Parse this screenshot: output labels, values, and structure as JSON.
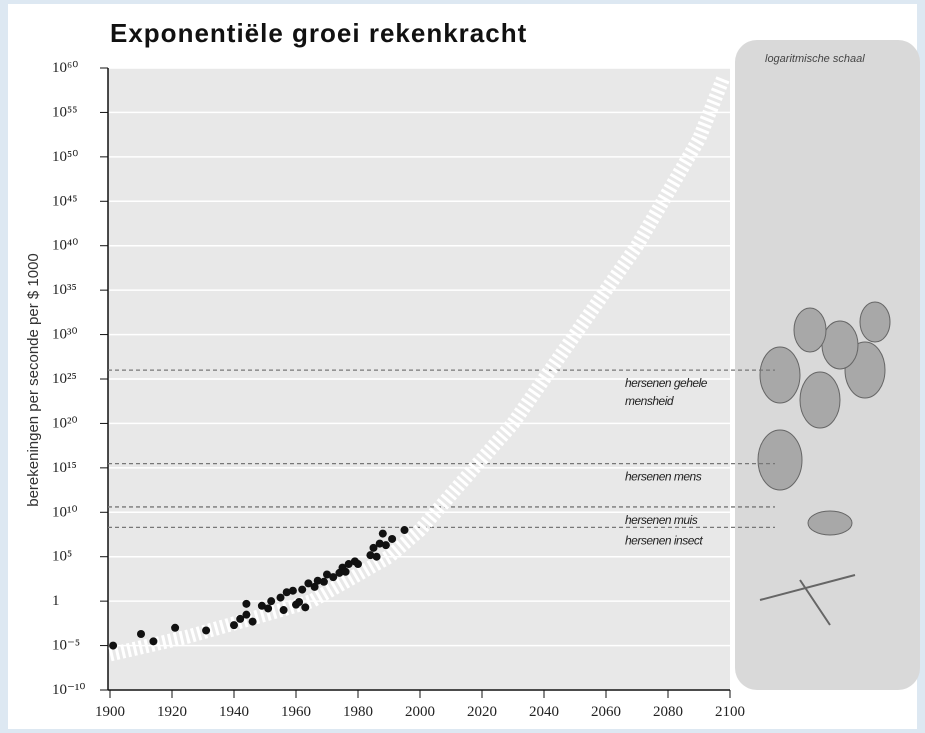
{
  "chart_data": {
    "type": "scatter",
    "title": "Exponentiële groei rekenkracht",
    "y_label": "berekeningen per seconde per $ 1000",
    "panel_label": "logaritmische schaal",
    "log_y": true,
    "grid": true,
    "xlim": [
      1900,
      2100
    ],
    "xticks": [
      1900,
      1920,
      1940,
      1960,
      1980,
      2000,
      2020,
      2040,
      2060,
      2080,
      2100
    ],
    "ylim": [
      1e-10,
      1e+60
    ],
    "yticks": [
      {
        "value": 1e+60,
        "label": "10⁶⁰"
      },
      {
        "value": 1e+55,
        "label": "10⁵⁵"
      },
      {
        "value": 1e+50,
        "label": "10⁵⁰"
      },
      {
        "value": 1e+45,
        "label": "10⁴⁵"
      },
      {
        "value": 1e+40,
        "label": "10⁴⁰"
      },
      {
        "value": 1e+35,
        "label": "10³⁵"
      },
      {
        "value": 1e+30,
        "label": "10³⁰"
      },
      {
        "value": 1e+25,
        "label": "10²⁵"
      },
      {
        "value": 1e+20,
        "label": "10²⁰"
      },
      {
        "value": 1000000000000000.0,
        "label": "10¹⁵"
      },
      {
        "value": 10000000000.0,
        "label": "10¹⁰"
      },
      {
        "value": 100000.0,
        "label": "10⁵"
      },
      1,
      {
        "value": 1e-05,
        "label": "10⁻⁵"
      },
      {
        "value": 1e-10,
        "label": "10⁻¹⁰"
      }
    ],
    "series": [
      {
        "color": "#111111",
        "style": "points",
        "x": [
          1901,
          1910,
          1914,
          1921,
          1931,
          1940,
          1942,
          1944,
          1944,
          1946,
          1949,
          1951,
          1952,
          1955,
          1956,
          1957,
          1959,
          1960,
          1961,
          1962,
          1963,
          1964,
          1966,
          1967,
          1969,
          1970,
          1972,
          1974,
          1975,
          1976,
          1977,
          1979,
          1980,
          1984,
          1985,
          1986,
          1987,
          1988,
          1989,
          1991,
          1995
        ],
        "values": [
          1e-05,
          0.0002,
          3e-05,
          0.001,
          0.0005,
          0.002,
          0.01,
          0.5,
          0.03,
          0.005,
          0.3,
          0.15,
          1,
          2.5,
          0.1,
          10,
          15,
          0.4,
          0.8,
          20,
          0.2,
          100,
          40,
          200,
          150,
          1000,
          500,
          1500,
          6000,
          2000,
          15000,
          30000,
          15000,
          150000,
          1000000.0,
          100000.0,
          3000000.0,
          40000000.0,
          2000000.0,
          10000000.0,
          100000000.0
        ]
      },
      {
        "color": "#ffffff",
        "style": "band",
        "x": [
          1900,
          1925,
          1950,
          1965,
          1980,
          1990,
          2000,
          2010,
          2020,
          2030,
          2040,
          2050,
          2060,
          2070,
          2080,
          2090,
          2098
        ],
        "values": [
          1e-06,
          0.0001,
          0.03,
          1,
          1000,
          100000.0,
          100000000.0,
          1000000000000.0,
          1e+16,
          1e+20,
          1e+25,
          1e+30,
          1e+35,
          1e+40,
          1e+46,
          1e+52,
          1e+59
        ]
      }
    ],
    "reference_lines": [
      {
        "value": 1e+26,
        "label": [
          "hersenen gehele",
          "mensheid"
        ]
      },
      {
        "value": 3000000000000000.0,
        "label": [
          "hersenen mens"
        ]
      },
      {
        "value": 40000000000.0,
        "label": [
          "hersenen muis"
        ]
      },
      {
        "value": 200000000.0,
        "label": [
          "hersenen insect"
        ]
      }
    ]
  }
}
